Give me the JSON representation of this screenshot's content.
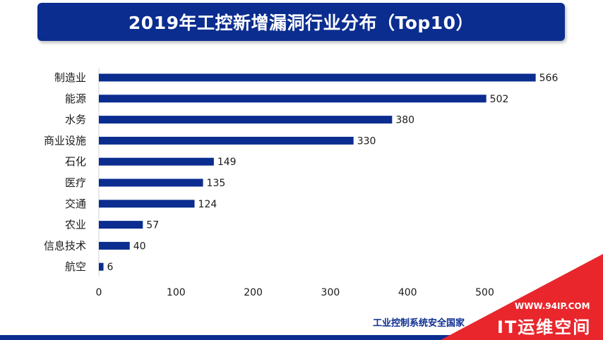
{
  "header": {
    "title": "2019年工控新增漏洞行业分布（Top10）"
  },
  "chart_data": {
    "type": "bar",
    "orientation": "horizontal",
    "title": "2019年工控新增漏洞行业分布（Top10）",
    "categories": [
      "制造业",
      "能源",
      "水务",
      "商业设施",
      "石化",
      "医疗",
      "交通",
      "农业",
      "信息技术",
      "航空"
    ],
    "values": [
      566,
      502,
      380,
      330,
      149,
      135,
      124,
      57,
      40,
      6
    ],
    "xlim": [
      0,
      600
    ],
    "xticks": [
      "0",
      "100",
      "200",
      "300",
      "400",
      "500"
    ],
    "grid": false,
    "bar_color": "#0b2d8f"
  },
  "footer": {
    "source": "工业控制系统安全国家"
  },
  "watermark": {
    "url_text": "WWW.94IP.COM",
    "brand": "IT运维空间"
  },
  "colors": {
    "accent": "#0b2d8f",
    "watermark_red": "#e8262c"
  }
}
